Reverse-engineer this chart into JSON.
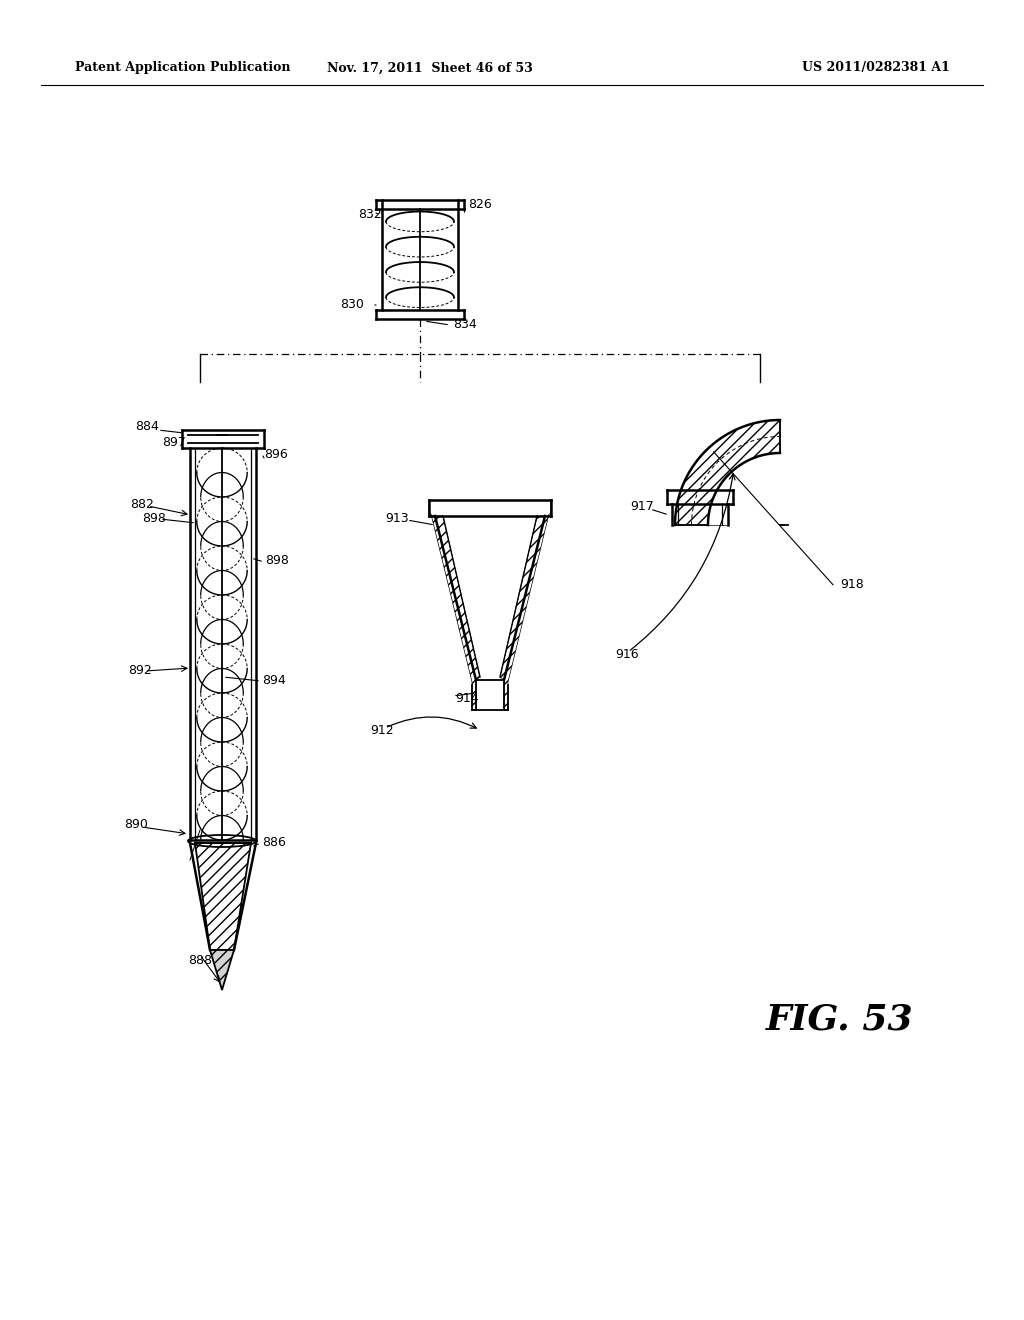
{
  "title_left": "Patent Application Publication",
  "title_mid": "Nov. 17, 2011  Sheet 46 of 53",
  "title_right": "US 2011/0282381 A1",
  "fig_label": "FIG. 53",
  "background": "#ffffff",
  "line_color": "#000000"
}
